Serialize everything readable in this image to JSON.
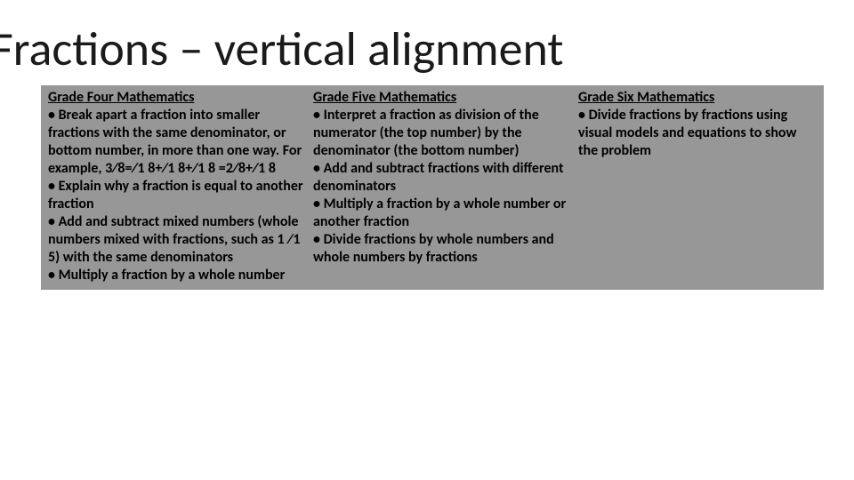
{
  "layout": {
    "background_color": "#ffffff",
    "content_bg": "#979797",
    "text_color": "#000000",
    "title_color": "#1a1a1a",
    "title_fontsize": 54,
    "body_fontsize": 16,
    "body_font_weight": 700
  },
  "title": "Fractions – vertical alignment",
  "columns": [
    {
      "heading": "Grade Four Mathematics",
      "body": "• Break apart a fraction into smaller fractions with the same denominator, or bottom number, in more than one way. For example, 3∕8=∕1 8+∕1 8+∕1 8 =2∕8+∕1 8\n• Explain why a fraction is equal to another fraction\n• Add and subtract mixed numbers (whole numbers mixed with fractions, such as 1 ∕1 5) with the same denominators\n• Multiply a fraction by a whole number"
    },
    {
      "heading": "Grade Five Mathematics",
      "body": "• Interpret a fraction as division of the numerator (the top number) by the denominator (the bottom number)\n• Add and subtract fractions with different denominators\n• Multiply a fraction by a whole number or another fraction\n• Divide fractions by whole numbers and whole numbers by fractions"
    },
    {
      "heading": "Grade Six Mathematics",
      "body": "• Divide fractions by fractions using visual models and equations to show the problem"
    }
  ]
}
